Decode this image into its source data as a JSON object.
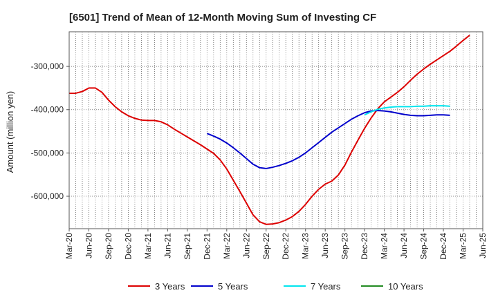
{
  "chart_data": {
    "type": "line",
    "title": "[6501]  Trend of Mean of 12-Month Moving Sum of Investing CF",
    "xlabel": "",
    "ylabel": "Amount (million yen)",
    "ylim": [
      -675000,
      -220000
    ],
    "yticks": [
      -300000,
      -400000,
      -500000,
      -600000
    ],
    "ytick_labels": [
      "-300,000",
      "-400,000",
      "-500,000",
      "-600,000"
    ],
    "xtick_labels": [
      "Mar-20",
      "Jun-20",
      "Sep-20",
      "Dec-20",
      "Mar-21",
      "Jun-21",
      "Sep-21",
      "Dec-21",
      "Mar-22",
      "Jun-22",
      "Sep-22",
      "Dec-22",
      "Mar-23",
      "Jun-23",
      "Sep-23",
      "Dec-23",
      "Mar-24",
      "Jun-24",
      "Sep-24",
      "Dec-24",
      "Mar-25",
      "Jun-25"
    ],
    "grid": true,
    "legend_position": "bottom",
    "series": [
      {
        "name": "3 Years",
        "color": "#dd0000",
        "start_month_index": 0,
        "values": [
          -362000,
          -362000,
          -358000,
          -350000,
          -350000,
          -360000,
          -378000,
          -393000,
          -405000,
          -414000,
          -420000,
          -424000,
          -425000,
          -425000,
          -428000,
          -435000,
          -445000,
          -454000,
          -463000,
          -472000,
          -481000,
          -491000,
          -501000,
          -516000,
          -537000,
          -563000,
          -589000,
          -616000,
          -643000,
          -659000,
          -665000,
          -664000,
          -661000,
          -655000,
          -647000,
          -635000,
          -619000,
          -600000,
          -584000,
          -572000,
          -565000,
          -551000,
          -528000,
          -498000,
          -470000,
          -443000,
          -419000,
          -398000,
          -382000,
          -371000,
          -360000,
          -347000,
          -332000,
          -318000,
          -306000,
          -295000,
          -285000,
          -275000,
          -265000,
          -253000,
          -240000,
          -228000
        ]
      },
      {
        "name": "5 Years",
        "color": "#0000cc",
        "start_month_index": 21,
        "values": [
          -455000,
          -461000,
          -468000,
          -477000,
          -488000,
          -500000,
          -513000,
          -526000,
          -534000,
          -536000,
          -533000,
          -529000,
          -524000,
          -518000,
          -510000,
          -500000,
          -488000,
          -476000,
          -464000,
          -452000,
          -442000,
          -432000,
          -422000,
          -414000,
          -407000,
          -403000,
          -402000,
          -403000,
          -405000,
          -408000,
          -411000,
          -413000,
          -414000,
          -414000,
          -413000,
          -412000,
          -412000,
          -413000
        ]
      },
      {
        "name": "7 Years",
        "color": "#00e5ee",
        "start_month_index": 45,
        "values": [
          -412000,
          -405000,
          -399000,
          -396000,
          -394000,
          -393000,
          -393000,
          -393000,
          -392000,
          -392000,
          -391000,
          -391000,
          -391000,
          -392000
        ]
      },
      {
        "name": "10 Years",
        "color": "#228b22",
        "start_month_index": 0,
        "values": []
      }
    ]
  }
}
